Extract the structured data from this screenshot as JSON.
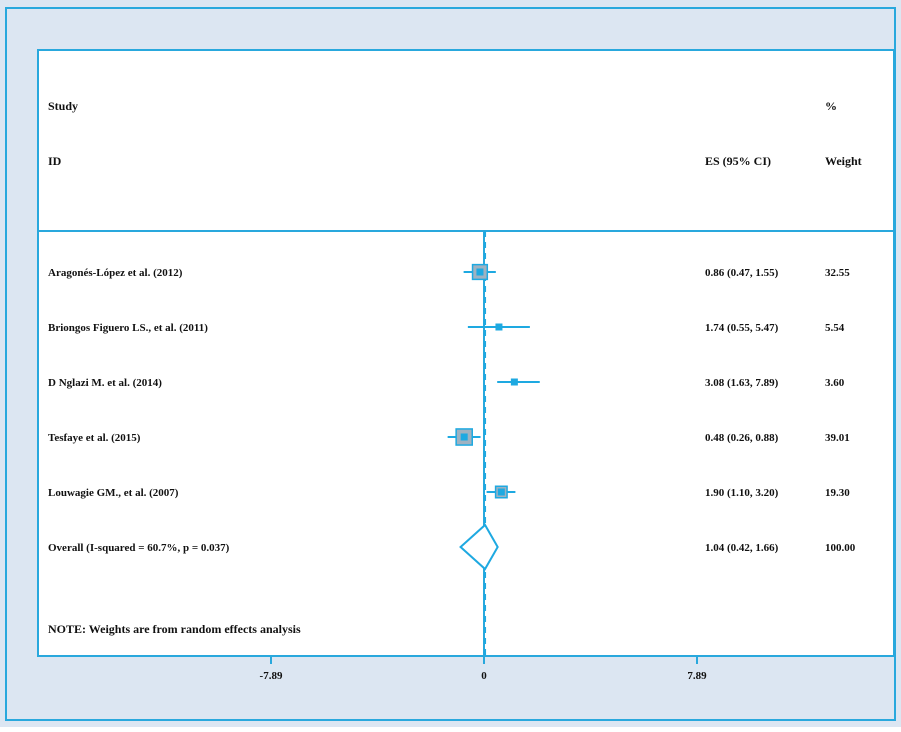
{
  "chart_data": {
    "type": "forest",
    "header": {
      "study_line1": "Study",
      "study_line2": "ID",
      "es_label": "ES (95% CI)",
      "weight_line1": "%",
      "weight_line2": "Weight"
    },
    "studies": [
      {
        "label": "Aragonés-López et al. (2012)",
        "es": 0.86,
        "lo": 0.47,
        "hi": 1.55,
        "es_text": "0.86 (0.47, 1.55)",
        "weight": 32.55,
        "weight_text": "32.55"
      },
      {
        "label": "Briongos Figuero LS., et al. (2011)",
        "es": 1.74,
        "lo": 0.55,
        "hi": 5.47,
        "es_text": "1.74 (0.55, 5.47)",
        "weight": 5.54,
        "weight_text": "5.54"
      },
      {
        "label": "D Nglazi M. et al. (2014)",
        "es": 3.08,
        "lo": 1.63,
        "hi": 7.89,
        "es_text": "3.08 (1.63, 7.89)",
        "weight": 3.6,
        "weight_text": "3.60"
      },
      {
        "label": "Tesfaye et al. (2015)",
        "es": 0.48,
        "lo": 0.26,
        "hi": 0.88,
        "es_text": "0.48 (0.26, 0.88)",
        "weight": 39.01,
        "weight_text": "39.01"
      },
      {
        "label": "Louwagie GM., et al. (2007)",
        "es": 1.9,
        "lo": 1.1,
        "hi": 3.2,
        "es_text": "1.90 (1.10, 3.20)",
        "weight": 19.3,
        "weight_text": "19.30"
      }
    ],
    "overall": {
      "label": "Overall  (I-squared = 60.7%, p = 0.037)",
      "es": 1.04,
      "lo": 0.42,
      "hi": 1.66,
      "es_text": "1.04 (0.42, 1.66)",
      "weight_text": "100.00"
    },
    "note": "NOTE: Weights are from random effects analysis",
    "x_axis": {
      "ticks": [
        -7.89,
        0,
        7.89
      ],
      "tick_labels": [
        "-7.89",
        "0",
        "7.89"
      ],
      "scale": "log",
      "null_line": 1
    },
    "colors": {
      "outer_background": "#dce6f2",
      "frame_border": "#29a8dd",
      "marker_line": "#1ea9e1",
      "box_fill": "#9fb2c1"
    }
  }
}
